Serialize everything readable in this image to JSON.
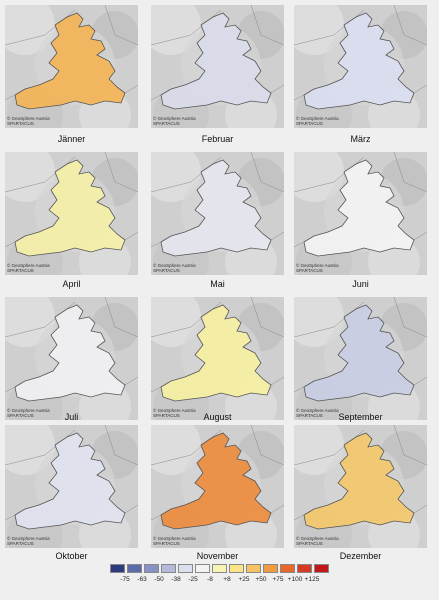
{
  "panels": [
    {
      "label": "Jänner",
      "credit1": "© GeoSphere Austria",
      "credit2": "SPARTACUS",
      "value": 40,
      "fill": "#f4b453"
    },
    {
      "label": "Februar",
      "credit1": "© GeoSphere Austria",
      "credit2": "SPARTACUS",
      "value": -20,
      "fill": "#d9dceb"
    },
    {
      "label": "März",
      "credit1": "© GeoSphere Austria",
      "credit2": "SPARTACUS",
      "value": -15,
      "fill": "#dadef0"
    },
    {
      "label": "April",
      "credit1": "© GeoSphere Austria",
      "credit2": "SPARTACUS",
      "value": 15,
      "fill": "#f5f0a6"
    },
    {
      "label": "Mai",
      "credit1": "© GeoSphere Austria",
      "credit2": "SPARTACUS",
      "value": -10,
      "fill": "#e5e6f0"
    },
    {
      "label": "Juni",
      "credit1": "© GeoSphere Austria",
      "credit2": "SPARTACUS",
      "value": 0,
      "fill": "#f4f4f4"
    },
    {
      "label": "Juli",
      "credit1": "© GeoSphere Austria",
      "credit2": "SPARTACUS",
      "value": 0,
      "fill": "#f1f1f4"
    },
    {
      "label": "August",
      "credit1": "© GeoSphere Austria",
      "credit2": "SPARTACUS",
      "value": 20,
      "fill": "#f6f0a0"
    },
    {
      "label": "September",
      "credit1": "© GeoSphere Austria",
      "credit2": "SPARTACUS",
      "value": -25,
      "fill": "#c9cde4"
    },
    {
      "label": "Oktober",
      "credit1": "© GeoSphere Austria",
      "credit2": "SPARTACUS",
      "value": -10,
      "fill": "#e0e2ef"
    },
    {
      "label": "November",
      "credit1": "© GeoSphere Austria",
      "credit2": "SPARTACUS",
      "value": 80,
      "fill": "#ec8b3b"
    },
    {
      "label": "Dezember",
      "credit1": "© GeoSphere Austria",
      "credit2": "SPARTACUS",
      "value": 40,
      "fill": "#f4c86a"
    }
  ],
  "legend": {
    "colors": [
      "#2d3a7c",
      "#5b6aa8",
      "#8692c4",
      "#b3badb",
      "#dcdfee",
      "#f3f3f3",
      "#f7f3b4",
      "#fbe487",
      "#f7c261",
      "#f19a40",
      "#e8682b",
      "#d63a22",
      "#c01818"
    ],
    "ticks": [
      "-75",
      "-63",
      "-50",
      "-38",
      "-25",
      "-8",
      "+8",
      "+25",
      "+50",
      "+75",
      "+100",
      "+125"
    ]
  }
}
